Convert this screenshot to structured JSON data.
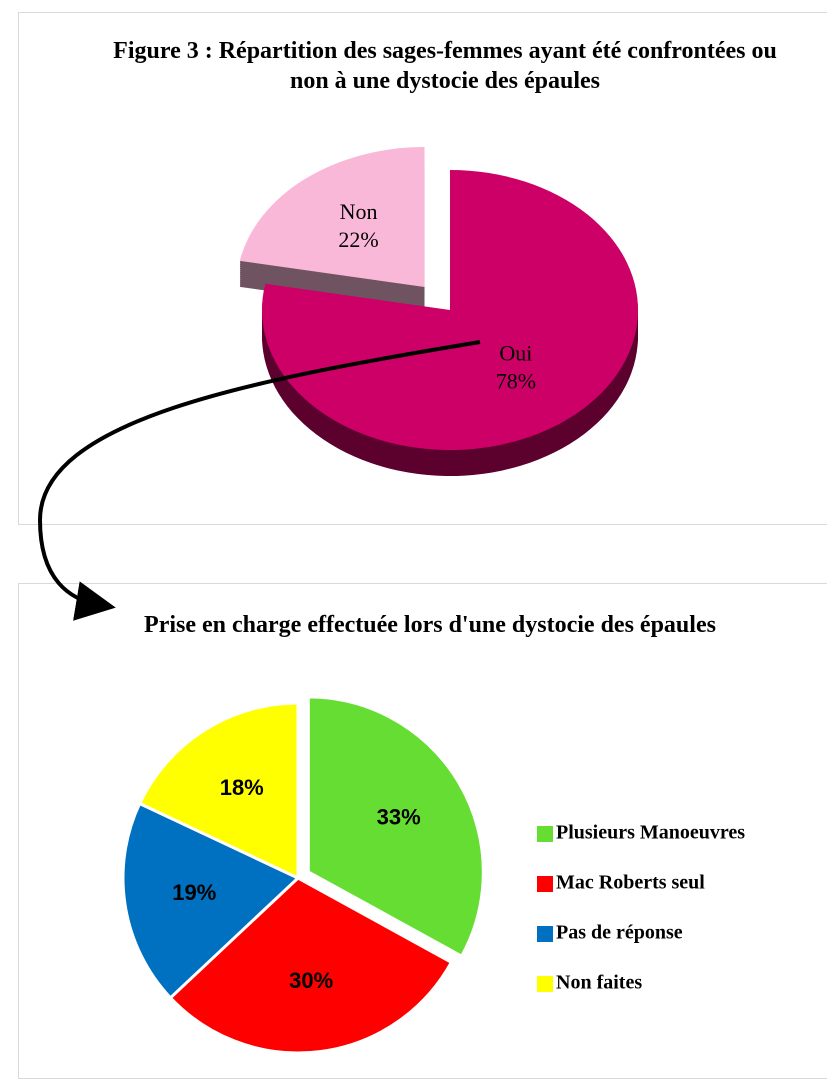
{
  "chart_data": [
    {
      "type": "pie3d",
      "title": "Figure 3 : Répartition des sages-femmes ayant été confrontées ou non à une dystocie des épaules",
      "categories": [
        "Oui",
        "Non"
      ],
      "values": [
        78,
        22
      ],
      "value_labels": [
        "78%",
        "22%"
      ],
      "colors": [
        "#cc0066",
        "#f9b8d8"
      ],
      "explode": [
        false,
        true
      ]
    },
    {
      "type": "pie",
      "title": "Prise en charge effectuée lors d'une dystocie des épaules",
      "categories": [
        "Plusieurs Manoeuvres",
        "Mac Roberts seul",
        "Pas de réponse",
        "Non faites"
      ],
      "values": [
        33,
        30,
        19,
        18
      ],
      "value_labels": [
        "33%",
        "30%",
        "19%",
        "18%"
      ],
      "colors": [
        "#66dd33",
        "#ff0000",
        "#0070c0",
        "#ffff00"
      ],
      "explode": [
        true,
        false,
        false,
        false
      ],
      "legend": "right"
    }
  ]
}
